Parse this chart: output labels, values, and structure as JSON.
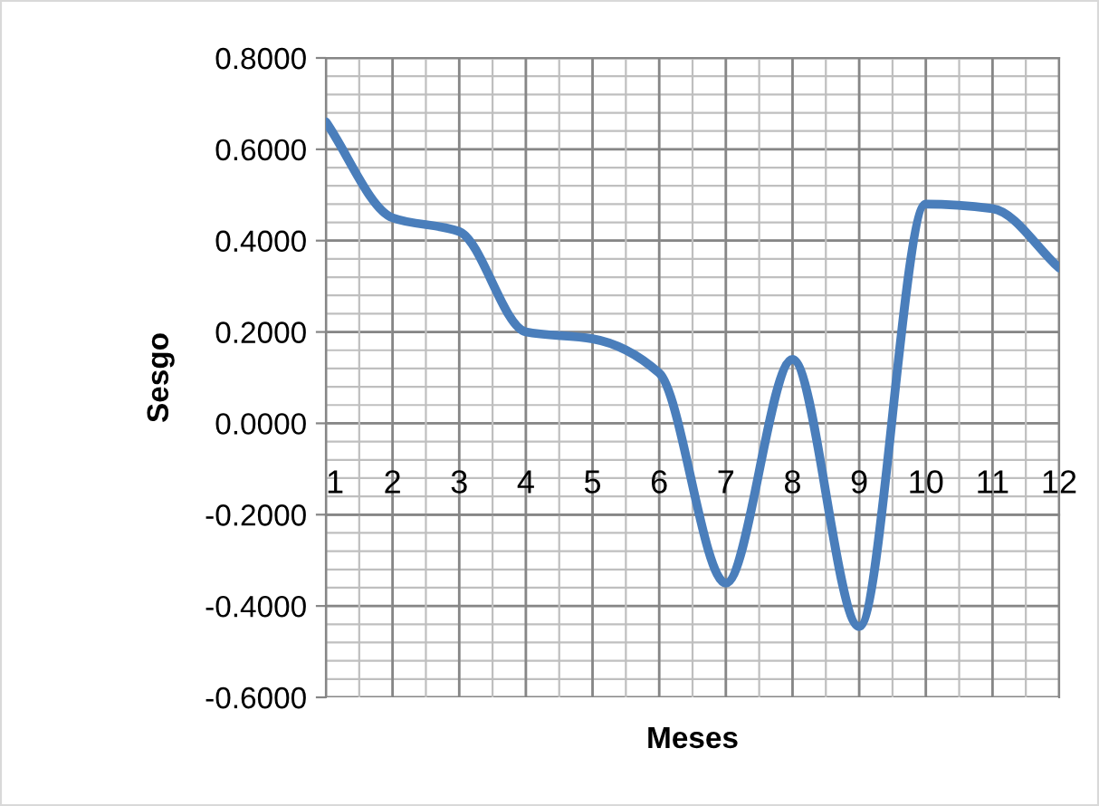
{
  "chart_data": {
    "type": "line",
    "xlabel": "Meses",
    "ylabel": "Sesgo",
    "categories": [
      "1",
      "2",
      "3",
      "4",
      "5",
      "6",
      "7",
      "8",
      "9",
      "10",
      "11",
      "12"
    ],
    "series": [
      {
        "color": "#4a7ebb",
        "values": [
          0.66,
          0.45,
          0.42,
          0.2,
          0.185,
          0.11,
          -0.35,
          0.14,
          -0.445,
          0.48,
          0.47,
          0.34
        ]
      }
    ],
    "ylim": [
      -0.6,
      0.8
    ],
    "yticks": [
      {
        "value": -0.6,
        "label": "-0.6000"
      },
      {
        "value": -0.4,
        "label": "-0.4000"
      },
      {
        "value": -0.2,
        "label": "-0.2000"
      },
      {
        "value": 0,
        "label": "0.0000"
      },
      {
        "value": 0.2,
        "label": "0.2000"
      },
      {
        "value": 0.4,
        "label": "0.4000"
      },
      {
        "value": 0.6,
        "label": "0.6000"
      },
      {
        "value": 0.8,
        "label": "0.8000"
      }
    ],
    "grid": true,
    "marker": "none",
    "line_style": "solid",
    "legend": false
  }
}
